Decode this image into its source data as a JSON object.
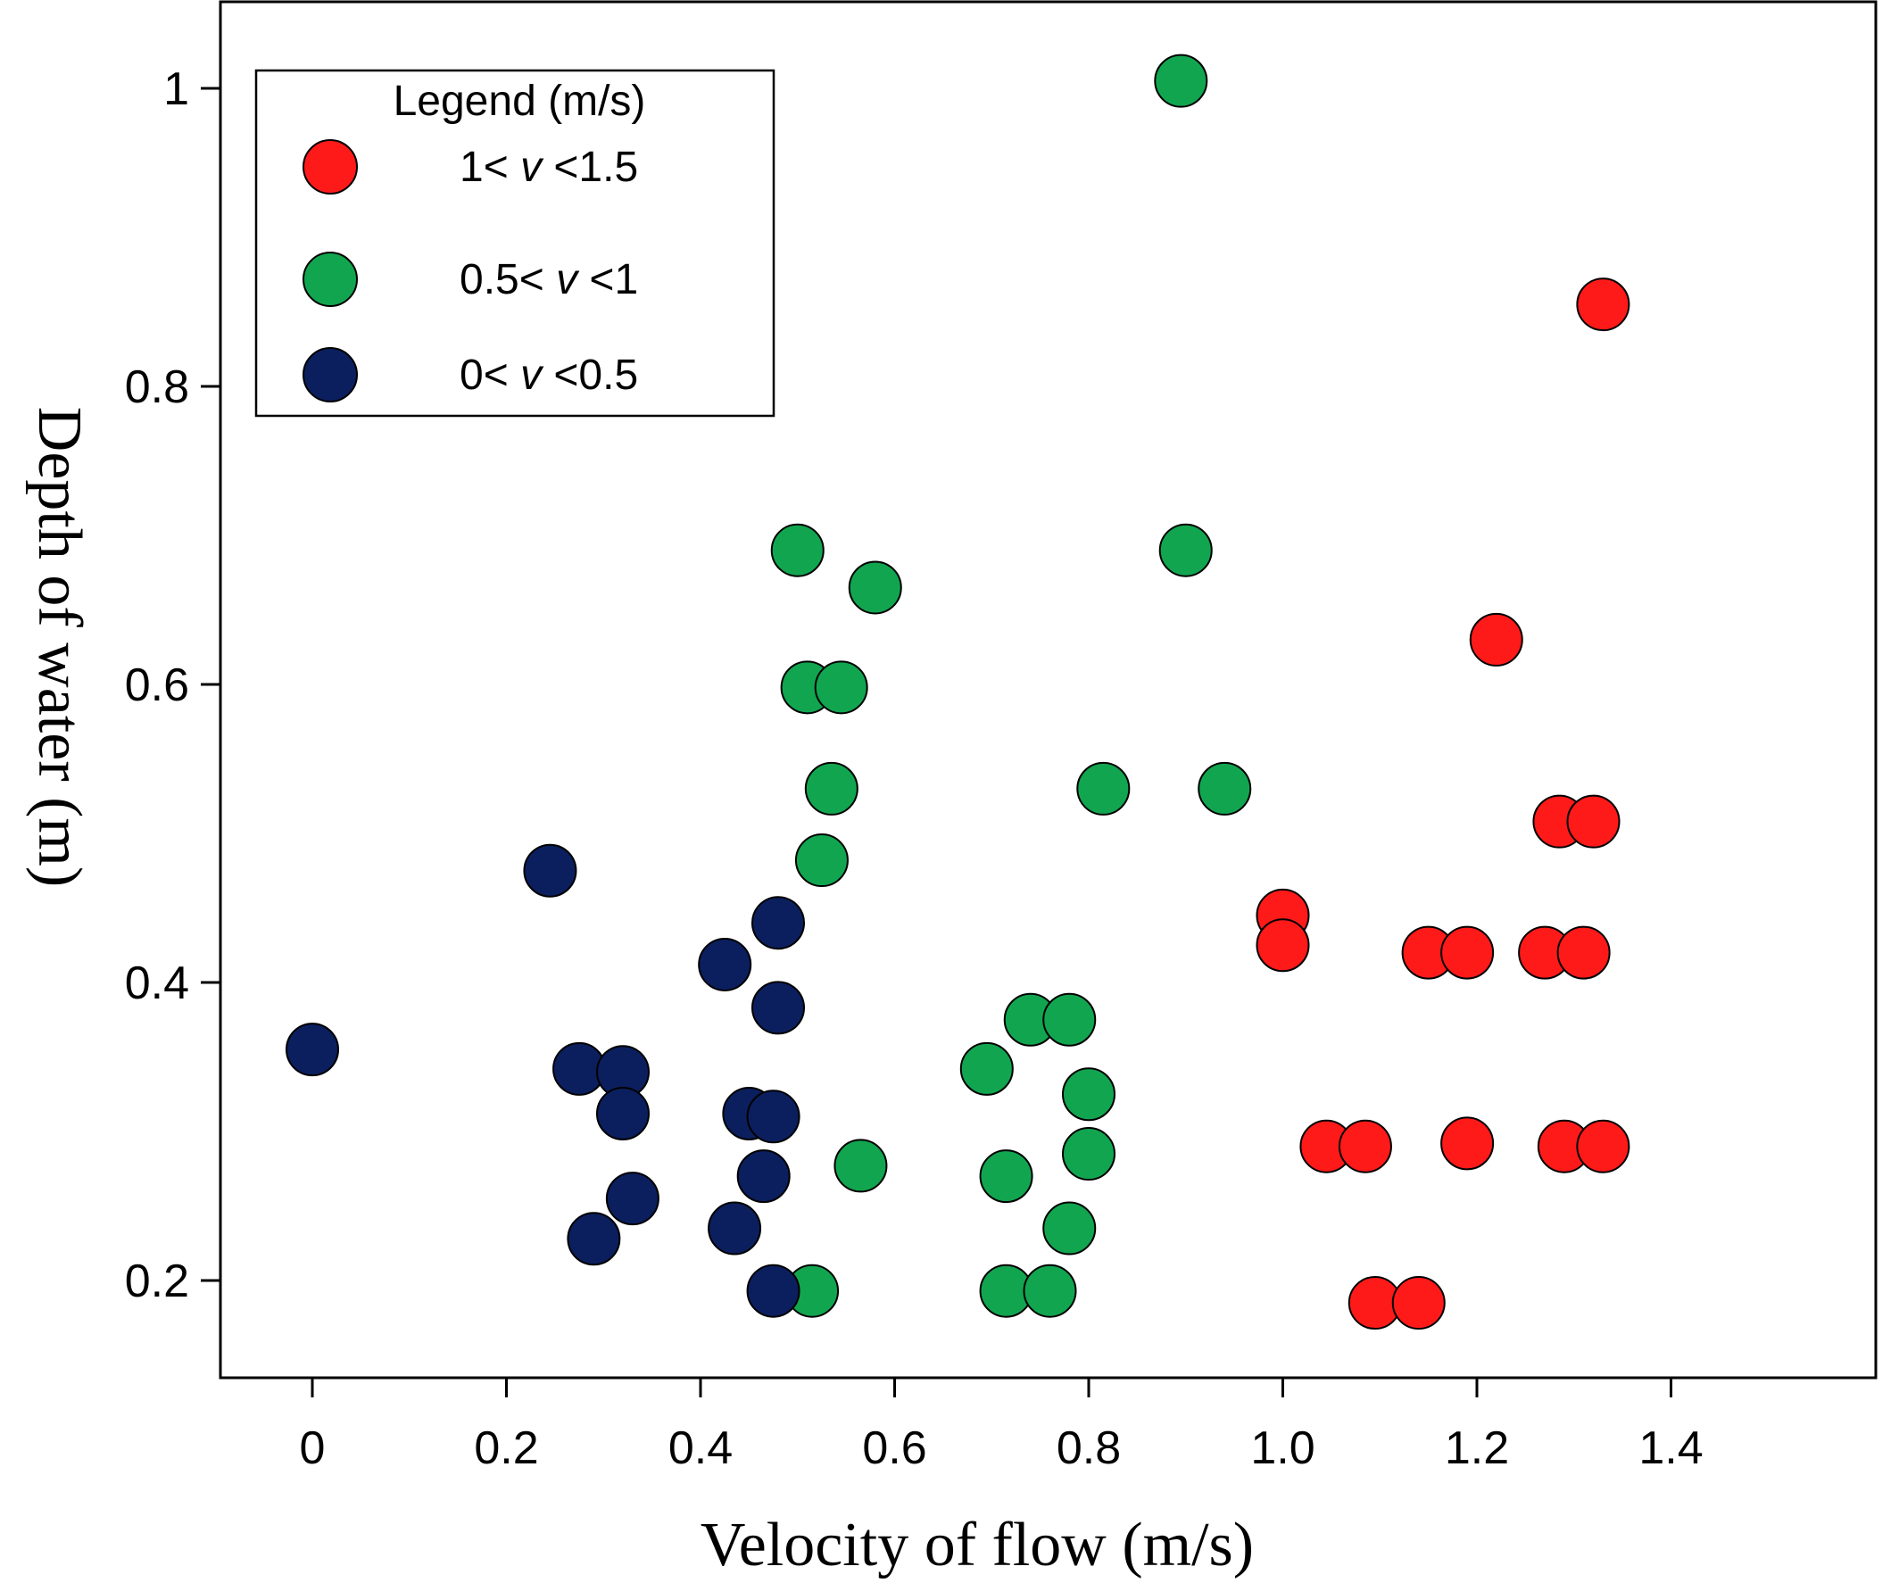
{
  "chart_data": {
    "type": "scatter",
    "xlabel": "Velocity of flow (m/s)",
    "ylabel": "Depth of water (m)",
    "xlim": [
      -0.1,
      1.55
    ],
    "ylim": [
      0.135,
      1.04
    ],
    "x_ticks": [
      {
        "value": 0,
        "label": "0"
      },
      {
        "value": 0.2,
        "label": "0.2"
      },
      {
        "value": 0.4,
        "label": "0.4"
      },
      {
        "value": 0.6,
        "label": "0.6"
      },
      {
        "value": 0.8,
        "label": "0.8"
      },
      {
        "value": 1.0,
        "label": "1.0"
      },
      {
        "value": 1.2,
        "label": "1.2"
      },
      {
        "value": 1.4,
        "label": "1.4"
      }
    ],
    "y_ticks": [
      {
        "value": 0.2,
        "label": "0.2"
      },
      {
        "value": 0.4,
        "label": "0.4"
      },
      {
        "value": 0.6,
        "label": "0.6"
      },
      {
        "value": 0.8,
        "label": "0.8"
      },
      {
        "value": 1.0,
        "label": "1"
      }
    ],
    "grid": false,
    "legend": {
      "title": "Legend (m/s)",
      "position": "top-left",
      "entries": [
        {
          "lower": "1<",
          "var": "v",
          "upper": "<1.5"
        },
        {
          "lower": "0.5<",
          "var": "v",
          "upper": "<1"
        },
        {
          "lower": "0<",
          "var": "v",
          "upper": "<0.5"
        }
      ]
    },
    "series": [
      {
        "name": "1< v <1.5",
        "color": "#ff1a1a",
        "points": [
          [
            1.33,
            0.855
          ],
          [
            1.22,
            0.63
          ],
          [
            1.285,
            0.508
          ],
          [
            1.32,
            0.508
          ],
          [
            1.0,
            0.445
          ],
          [
            1.0,
            0.425
          ],
          [
            1.15,
            0.42
          ],
          [
            1.19,
            0.42
          ],
          [
            1.27,
            0.42
          ],
          [
            1.31,
            0.42
          ],
          [
            1.045,
            0.29
          ],
          [
            1.085,
            0.29
          ],
          [
            1.19,
            0.292
          ],
          [
            1.29,
            0.29
          ],
          [
            1.33,
            0.29
          ],
          [
            1.095,
            0.185
          ],
          [
            1.14,
            0.185
          ]
        ]
      },
      {
        "name": "0.5< v <1",
        "color": "#12a550",
        "points": [
          [
            0.895,
            1.005
          ],
          [
            0.5,
            0.69
          ],
          [
            0.58,
            0.665
          ],
          [
            0.9,
            0.69
          ],
          [
            0.51,
            0.598
          ],
          [
            0.545,
            0.598
          ],
          [
            0.535,
            0.53
          ],
          [
            0.815,
            0.53
          ],
          [
            0.94,
            0.53
          ],
          [
            0.525,
            0.482
          ],
          [
            0.74,
            0.375
          ],
          [
            0.78,
            0.375
          ],
          [
            0.695,
            0.342
          ],
          [
            0.8,
            0.325
          ],
          [
            0.8,
            0.285
          ],
          [
            0.565,
            0.277
          ],
          [
            0.715,
            0.27
          ],
          [
            0.78,
            0.235
          ],
          [
            0.515,
            0.193
          ],
          [
            0.715,
            0.193
          ],
          [
            0.76,
            0.193
          ]
        ]
      },
      {
        "name": "0< v <0.5",
        "color": "#0b1f5e",
        "points": [
          [
            0.245,
            0.475
          ],
          [
            0.0,
            0.355
          ],
          [
            0.48,
            0.44
          ],
          [
            0.425,
            0.412
          ],
          [
            0.48,
            0.383
          ],
          [
            0.275,
            0.342
          ],
          [
            0.32,
            0.34
          ],
          [
            0.32,
            0.312
          ],
          [
            0.45,
            0.312
          ],
          [
            0.475,
            0.31
          ],
          [
            0.465,
            0.27
          ],
          [
            0.33,
            0.255
          ],
          [
            0.29,
            0.228
          ],
          [
            0.435,
            0.235
          ],
          [
            0.475,
            0.193
          ]
        ]
      }
    ]
  }
}
